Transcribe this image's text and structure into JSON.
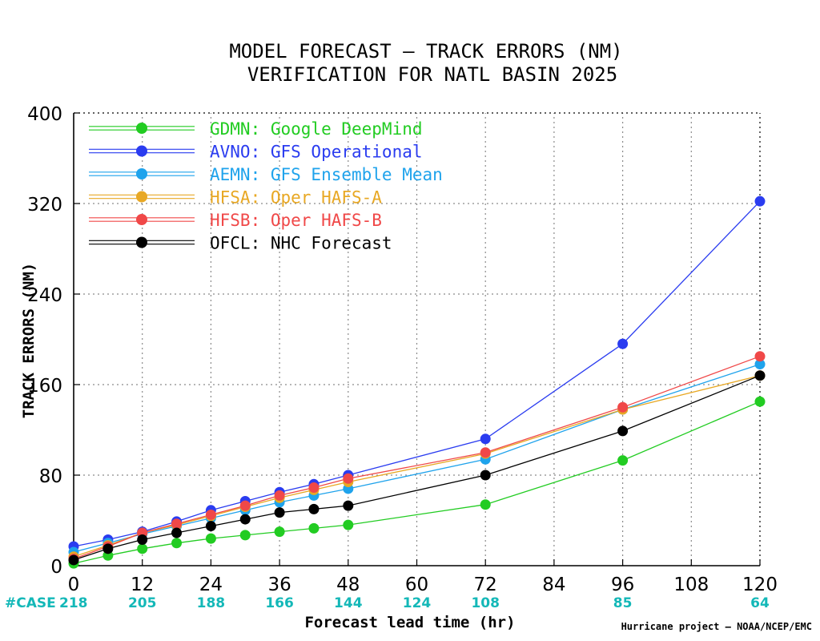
{
  "chart_data": {
    "type": "line",
    "title": "MODEL FORECAST — TRACK ERRORS (NM)",
    "subtitle": "VERIFICATION FOR NATL BASIN 2025",
    "xlabel": "Forecast lead time (hr)",
    "ylabel": "TRACK ERRORS (NM)",
    "x": [
      0,
      6,
      12,
      18,
      24,
      30,
      36,
      42,
      48,
      72,
      96,
      120
    ],
    "xlim": [
      0,
      120
    ],
    "ylim": [
      0,
      400
    ],
    "grid": true,
    "legend_position": "top-left",
    "series": [
      {
        "id": "GDMN",
        "label": "GDMN: Google DeepMind",
        "color": "#22cc22",
        "x": [
          0,
          6,
          12,
          18,
          24,
          30,
          36,
          42,
          48,
          72,
          96,
          120
        ],
        "values": [
          2,
          9,
          15,
          20,
          24,
          27,
          30,
          33,
          36,
          54,
          93,
          145
        ]
      },
      {
        "id": "AVNO",
        "label": "AVNO: GFS Operational",
        "color": "#2a3cf0",
        "x": [
          0,
          6,
          12,
          18,
          24,
          30,
          36,
          42,
          48,
          72,
          96,
          120
        ],
        "values": [
          17,
          23,
          30,
          39,
          49,
          57,
          65,
          72,
          80,
          112,
          196,
          322
        ]
      },
      {
        "id": "AEMN",
        "label": "AEMN: GFS Ensemble Mean",
        "color": "#1fa3ec",
        "x": [
          0,
          6,
          12,
          18,
          24,
          30,
          36,
          42,
          48,
          72,
          96,
          120
        ],
        "values": [
          12,
          20,
          28,
          35,
          42,
          49,
          56,
          62,
          68,
          94,
          138,
          178
        ]
      },
      {
        "id": "HFSA",
        "label": "HFSA: Oper HAFS-A",
        "color": "#e8a824",
        "x": [
          0,
          6,
          12,
          18,
          24,
          30,
          36,
          42,
          48,
          72,
          96,
          120
        ],
        "values": [
          8,
          18,
          29,
          36,
          44,
          52,
          60,
          67,
          74,
          99,
          138,
          168
        ]
      },
      {
        "id": "HFSB",
        "label": "HFSB: Oper HAFS-B",
        "color": "#f04848",
        "x": [
          0,
          6,
          12,
          18,
          24,
          30,
          36,
          42,
          48,
          72,
          96,
          120
        ],
        "values": [
          6,
          17,
          29,
          37,
          45,
          53,
          62,
          69,
          77,
          100,
          140,
          185
        ]
      },
      {
        "id": "OFCL",
        "label": "OFCL: NHC Forecast",
        "color": "#000000",
        "x": [
          0,
          6,
          12,
          18,
          24,
          30,
          36,
          42,
          48,
          72,
          96,
          120
        ],
        "values": [
          5,
          15,
          23,
          29,
          35,
          41,
          47,
          50,
          53,
          80,
          119,
          168
        ]
      }
    ],
    "x_ticks": [
      "0",
      "12",
      "24",
      "36",
      "48",
      "60",
      "72",
      "84",
      "96",
      "108",
      "120"
    ],
    "y_ticks": [
      "0",
      "80",
      "160",
      "240",
      "320",
      "400"
    ],
    "case_label": "#CASE",
    "case_counts": [
      {
        "x": 0,
        "label": "218"
      },
      {
        "x": 12,
        "label": "205"
      },
      {
        "x": 24,
        "label": "188"
      },
      {
        "x": 36,
        "label": "166"
      },
      {
        "x": 48,
        "label": "144"
      },
      {
        "x": 60,
        "label": "124"
      },
      {
        "x": 72,
        "label": "108"
      },
      {
        "x": 96,
        "label": "85"
      },
      {
        "x": 120,
        "label": "64"
      }
    ],
    "credit": "Hurricane project — NOAA/NCEP/EMC"
  }
}
